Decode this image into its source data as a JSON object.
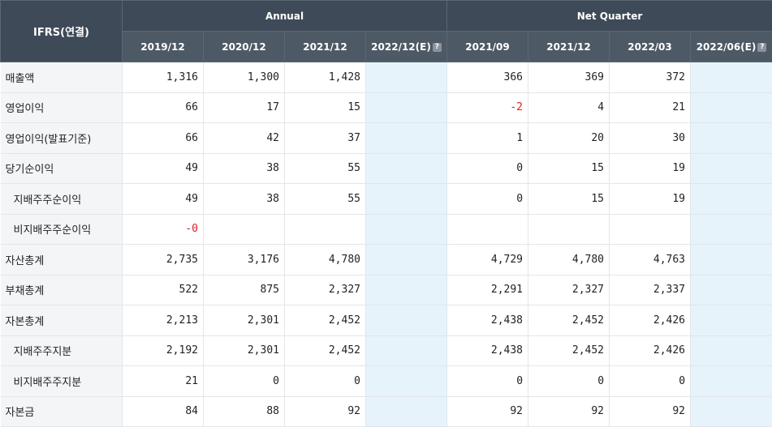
{
  "header": {
    "label": "IFRS(연결)",
    "group_annual": "Annual",
    "group_quarter": "Net Quarter",
    "periods": [
      "2019/12",
      "2020/12",
      "2021/12",
      "2022/12(E)",
      "2021/09",
      "2021/12",
      "2022/03",
      "2022/06(E)"
    ],
    "help_glyph": "?"
  },
  "rows": [
    {
      "label": "매출액",
      "values": [
        "1,316",
        "1,300",
        "1,428",
        "",
        "366",
        "369",
        "372",
        ""
      ]
    },
    {
      "label": "영업이익",
      "values": [
        "66",
        "17",
        "15",
        "",
        "-2",
        "4",
        "21",
        ""
      ]
    },
    {
      "label": "영업이익(발표기준)",
      "values": [
        "66",
        "42",
        "37",
        "",
        "1",
        "20",
        "30",
        ""
      ]
    },
    {
      "label": "당기순이익",
      "values": [
        "49",
        "38",
        "55",
        "",
        "0",
        "15",
        "19",
        ""
      ]
    },
    {
      "label": "지배주주순이익",
      "values": [
        "49",
        "38",
        "55",
        "",
        "0",
        "15",
        "19",
        ""
      ]
    },
    {
      "label": "비지배주주순이익",
      "values": [
        "-0",
        "",
        "",
        "",
        "",
        "",
        "",
        ""
      ]
    },
    {
      "label": "자산총계",
      "values": [
        "2,735",
        "3,176",
        "4,780",
        "",
        "4,729",
        "4,780",
        "4,763",
        ""
      ]
    },
    {
      "label": "부채총계",
      "values": [
        "522",
        "875",
        "2,327",
        "",
        "2,291",
        "2,327",
        "2,337",
        ""
      ]
    },
    {
      "label": "자본총계",
      "values": [
        "2,213",
        "2,301",
        "2,452",
        "",
        "2,438",
        "2,452",
        "2,426",
        ""
      ]
    },
    {
      "label": "지배주주지분",
      "values": [
        "2,192",
        "2,301",
        "2,452",
        "",
        "2,438",
        "2,452",
        "2,426",
        ""
      ]
    },
    {
      "label": "비지배주주지분",
      "values": [
        "21",
        "0",
        "0",
        "",
        "0",
        "0",
        "0",
        ""
      ]
    },
    {
      "label": "자본금",
      "values": [
        "84",
        "88",
        "92",
        "",
        "92",
        "92",
        "92",
        ""
      ]
    }
  ],
  "colors": {
    "header_bg": "#3e4a57",
    "subheader_bg": "#4d5965",
    "estimate_bg": "#e6f3fa",
    "negative_text": "#e11d1d"
  }
}
